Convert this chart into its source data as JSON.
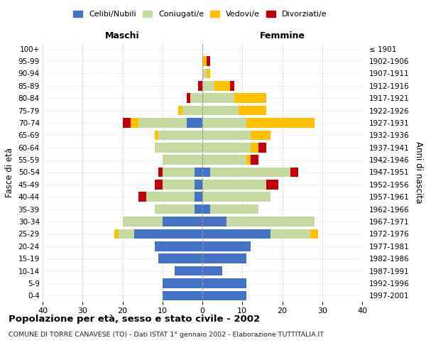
{
  "age_groups": [
    "0-4",
    "5-9",
    "10-14",
    "15-19",
    "20-24",
    "25-29",
    "30-34",
    "35-39",
    "40-44",
    "45-49",
    "50-54",
    "55-59",
    "60-64",
    "65-69",
    "70-74",
    "75-79",
    "80-84",
    "85-89",
    "90-94",
    "95-99",
    "100+"
  ],
  "birth_years": [
    "1997-2001",
    "1992-1996",
    "1987-1991",
    "1982-1986",
    "1977-1981",
    "1972-1976",
    "1967-1971",
    "1962-1966",
    "1957-1961",
    "1952-1956",
    "1947-1951",
    "1942-1946",
    "1937-1941",
    "1932-1936",
    "1927-1931",
    "1922-1926",
    "1917-1921",
    "1912-1916",
    "1907-1911",
    "1902-1906",
    "≤ 1901"
  ],
  "males": {
    "celibi": [
      10,
      10,
      7,
      11,
      12,
      17,
      10,
      2,
      2,
      2,
      2,
      0,
      0,
      0,
      4,
      0,
      0,
      0,
      0,
      0,
      0
    ],
    "coniugati": [
      0,
      0,
      0,
      0,
      0,
      4,
      10,
      10,
      12,
      8,
      8,
      10,
      12,
      11,
      12,
      5,
      3,
      0,
      0,
      0,
      0
    ],
    "vedovi": [
      0,
      0,
      0,
      0,
      0,
      1,
      0,
      0,
      0,
      0,
      0,
      0,
      0,
      1,
      2,
      1,
      0,
      0,
      0,
      0,
      0
    ],
    "divorziati": [
      0,
      0,
      0,
      0,
      0,
      0,
      0,
      0,
      2,
      2,
      1,
      0,
      0,
      0,
      2,
      0,
      1,
      1,
      0,
      0,
      0
    ]
  },
  "females": {
    "nubili": [
      11,
      11,
      5,
      11,
      12,
      17,
      6,
      2,
      0,
      0,
      2,
      0,
      0,
      0,
      0,
      0,
      0,
      0,
      0,
      0,
      0
    ],
    "coniugate": [
      0,
      0,
      0,
      0,
      0,
      10,
      22,
      12,
      17,
      16,
      20,
      11,
      12,
      12,
      11,
      9,
      8,
      3,
      1,
      0,
      0
    ],
    "vedove": [
      0,
      0,
      0,
      0,
      0,
      2,
      0,
      0,
      0,
      0,
      0,
      1,
      2,
      5,
      17,
      7,
      8,
      4,
      1,
      1,
      0
    ],
    "divorziate": [
      0,
      0,
      0,
      0,
      0,
      0,
      0,
      0,
      0,
      3,
      2,
      2,
      2,
      0,
      0,
      0,
      0,
      1,
      0,
      1,
      0
    ]
  },
  "colors": {
    "celibi": "#4472c4",
    "coniugati": "#c5d9a1",
    "vedovi": "#ffc000",
    "divorziati": "#c0000a"
  },
  "xlim": 40,
  "title": "Popolazione per età, sesso e stato civile - 2002",
  "subtitle": "COMUNE DI TORRE CANAVESE (TO) - Dati ISTAT 1° gennaio 2002 - Elaborazione TUTTITALIA.IT",
  "ylabel_left": "Fasce di età",
  "ylabel_right": "Anni di nascita",
  "xlabel_left": "Maschi",
  "xlabel_right": "Femmine",
  "legend_labels": [
    "Celibi/Nubili",
    "Coniugati/e",
    "Vedovi/e",
    "Divorziati/e"
  ]
}
